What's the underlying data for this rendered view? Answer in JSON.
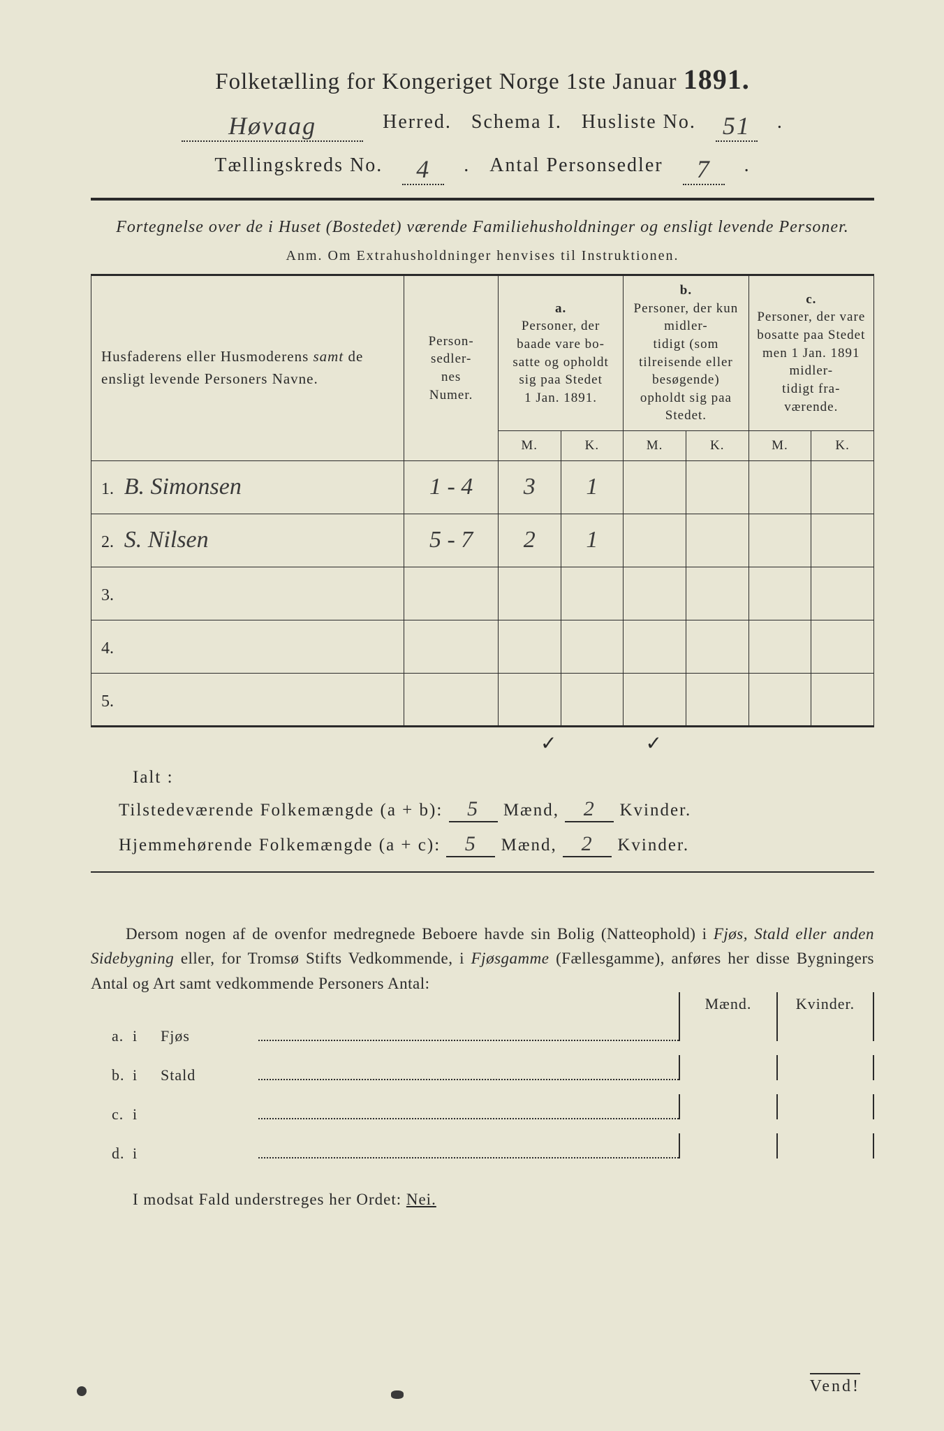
{
  "header": {
    "title_pre": "Folketælling for Kongeriget Norge 1ste Januar",
    "year": "1891.",
    "herred_hand": "Høvaag",
    "herred_label": "Herred.",
    "schema_label": "Schema I.",
    "husliste_label": "Husliste No.",
    "husliste_no": "51",
    "kreds_label": "Tællingskreds No.",
    "kreds_no": "4",
    "antal_label": "Antal Personsedler",
    "antal_no": "7"
  },
  "subtitle": "Fortegnelse over de i Huset (Bostedet) værende Familiehusholdninger og ensligt levende Personer.",
  "anm": "Anm.  Om Extrahusholdninger henvises til Instruktionen.",
  "table": {
    "col_name": "Husfaderens eller Husmoderens samt de ensligt levende Personers Navne.",
    "col_num": "Personsedlernes Numer.",
    "col_a": "a.\nPersoner, der baade vare bosatte og opholdt sig paa Stedet 1 Jan. 1891.",
    "col_b": "b.\nPersoner, der kun midlertidigt (som tilreisende eller besøgende) opholdt sig paa Stedet.",
    "col_c": "c.\nPersoner, der vare bosatte paa Stedet men 1 Jan. 1891 midlertidigt fraværende.",
    "mk_m": "M.",
    "mk_k": "K.",
    "rows": [
      {
        "n": "1.",
        "name": "B. Simonsen",
        "num": "1 - 4",
        "am": "3",
        "ak": "1",
        "bm": "",
        "bk": "",
        "cm": "",
        "ck": ""
      },
      {
        "n": "2.",
        "name": "S. Nilsen",
        "num": "5 - 7",
        "am": "2",
        "ak": "1",
        "bm": "",
        "bk": "",
        "cm": "",
        "ck": ""
      },
      {
        "n": "3.",
        "name": "",
        "num": "",
        "am": "",
        "ak": "",
        "bm": "",
        "bk": "",
        "cm": "",
        "ck": ""
      },
      {
        "n": "4.",
        "name": "",
        "num": "",
        "am": "",
        "ak": "",
        "bm": "",
        "bk": "",
        "cm": "",
        "ck": ""
      },
      {
        "n": "5.",
        "name": "",
        "num": "",
        "am": "",
        "ak": "",
        "bm": "",
        "bk": "",
        "cm": "",
        "ck": ""
      }
    ],
    "checks": "✓ ✓"
  },
  "ialt": {
    "label": "Ialt :",
    "line1_label": "Tilstedeværende Folkemængde (a + b):",
    "line2_label": "Hjemmehørende Folkemængde (a + c):",
    "maend": "Mænd,",
    "kvinder": "Kvinder.",
    "l1_m": "5",
    "l1_k": "2",
    "l2_m": "5",
    "l2_k": "2"
  },
  "para": "Dersom nogen af de ovenfor medregnede Beboere havde sin Bolig (Natteophold) i Fjøs, Stald eller anden Sidebygning eller, for Tromsø Stifts Vedkommende, i Fjøsgamme (Fællesgamme), anføres her disse Bygningers Antal og Art samt vedkommende Personers Antal:",
  "bldg": {
    "head_m": "Mænd.",
    "head_k": "Kvinder.",
    "rows": [
      {
        "k": "a.",
        "i": "i",
        "nm": "Fjøs"
      },
      {
        "k": "b.",
        "i": "i",
        "nm": "Stald"
      },
      {
        "k": "c.",
        "i": "i",
        "nm": ""
      },
      {
        "k": "d.",
        "i": "i",
        "nm": ""
      }
    ]
  },
  "nei": {
    "pre": "I modsat Fald understreges her Ordet:",
    "word": "Nei."
  },
  "vend": "Vend!",
  "colors": {
    "bg": "#e8e6d4",
    "ink": "#2a2a2a",
    "hand": "#3a3a3a"
  }
}
